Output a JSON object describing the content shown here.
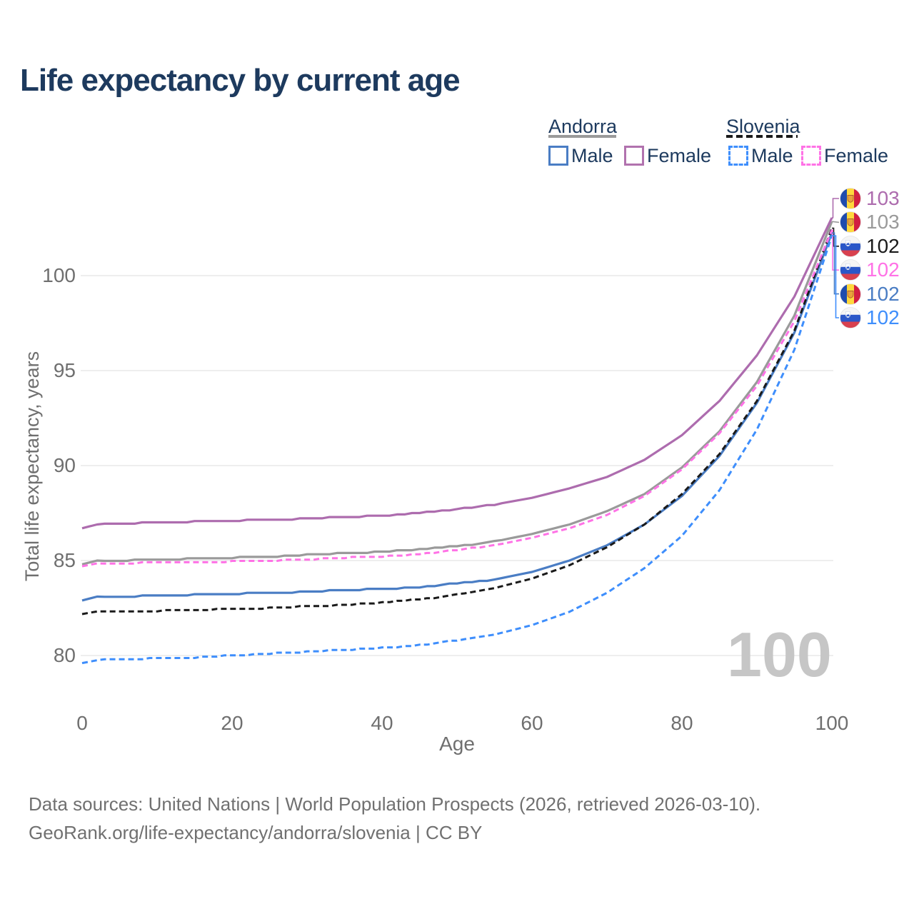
{
  "header": {
    "title": "Life expectancy by current age"
  },
  "legend": {
    "groups": [
      {
        "country": "Andorra",
        "underline_style": "solid",
        "underline_color": "#9a9a9a",
        "items": [
          {
            "label": "Male",
            "color": "#4a7dc4",
            "line_style": "solid"
          },
          {
            "label": "Female",
            "color": "#b172ae",
            "line_style": "solid"
          }
        ]
      },
      {
        "country": "Slovenia",
        "underline_style": "dashed",
        "underline_color": "#1a1a1a",
        "items": [
          {
            "label": "Male",
            "color": "#3e8efc",
            "line_style": "dashed"
          },
          {
            "label": "Female",
            "color": "#ff72e6",
            "line_style": "dashed"
          }
        ]
      }
    ]
  },
  "chart_data": {
    "type": "line",
    "title": "Life expectancy by current age",
    "xlabel": "Age",
    "ylabel": "Total life expectancy, years",
    "xticks": [
      0,
      20,
      40,
      60,
      80,
      100
    ],
    "yticks": [
      80,
      85,
      90,
      95,
      100
    ],
    "xlim": [
      0,
      100
    ],
    "ylim": [
      78.5,
      104
    ],
    "grid": "horizontal-only",
    "legend_position": "top-right",
    "x": [
      0,
      2,
      5,
      10,
      15,
      20,
      25,
      30,
      35,
      40,
      45,
      50,
      55,
      60,
      65,
      70,
      75,
      80,
      85,
      90,
      95,
      100
    ],
    "series": [
      {
        "name": "Andorra Female",
        "country": "Andorra",
        "sex": "Female",
        "style": "solid",
        "color": "#ad6cae",
        "flag": "andorra-flag-icon",
        "end_label": "103",
        "values": [
          86.7,
          86.9,
          86.95,
          87.0,
          87.05,
          87.1,
          87.15,
          87.2,
          87.3,
          87.35,
          87.5,
          87.7,
          87.95,
          88.3,
          88.8,
          89.4,
          90.3,
          91.6,
          93.4,
          95.8,
          98.9,
          103.05
        ]
      },
      {
        "name": "Andorra",
        "country": "Andorra",
        "sex": "Both sexes",
        "style": "solid",
        "color": "#9a9a9a",
        "flag": "andorra-flag-icon",
        "end_label": "103",
        "values": [
          84.8,
          85.0,
          85.0,
          85.05,
          85.1,
          85.15,
          85.2,
          85.3,
          85.4,
          85.45,
          85.6,
          85.75,
          86.0,
          86.4,
          86.9,
          87.6,
          88.5,
          89.9,
          91.8,
          94.4,
          97.9,
          102.85
        ]
      },
      {
        "name": "Slovenia",
        "country": "Slovenia",
        "sex": "Both sexes",
        "style": "dashed",
        "color": "#1a1a1a",
        "flag": "slovenia-flag-icon",
        "end_label": "102",
        "values": [
          82.2,
          82.3,
          82.3,
          82.35,
          82.4,
          82.45,
          82.5,
          82.6,
          82.65,
          82.8,
          82.95,
          83.2,
          83.55,
          84.05,
          84.75,
          85.7,
          86.9,
          88.5,
          90.6,
          93.4,
          97.1,
          102.5
        ]
      },
      {
        "name": "Slovenia Female",
        "country": "Slovenia",
        "sex": "Female",
        "style": "dashed",
        "color": "#ff72e6",
        "flag": "slovenia-flag-icon",
        "end_label": "102",
        "values": [
          84.7,
          84.85,
          84.85,
          84.9,
          84.9,
          84.95,
          85.0,
          85.05,
          85.15,
          85.2,
          85.35,
          85.55,
          85.8,
          86.2,
          86.7,
          87.4,
          88.4,
          89.8,
          91.7,
          94.2,
          97.6,
          102.4
        ]
      },
      {
        "name": "Andorra Male",
        "country": "Andorra",
        "sex": "Male",
        "style": "solid",
        "color": "#4a7dc4",
        "flag": "andorra-flag-icon",
        "end_label": "102",
        "values": [
          82.9,
          83.1,
          83.1,
          83.15,
          83.2,
          83.25,
          83.3,
          83.35,
          83.45,
          83.5,
          83.6,
          83.8,
          84.0,
          84.4,
          85.0,
          85.8,
          86.9,
          88.4,
          90.5,
          93.3,
          97.0,
          102.25
        ]
      },
      {
        "name": "Slovenia Male",
        "country": "Slovenia",
        "sex": "Male",
        "style": "dashed",
        "color": "#3e8efc",
        "flag": "slovenia-flag-icon",
        "end_label": "102",
        "values": [
          79.6,
          79.75,
          79.8,
          79.85,
          79.9,
          80.0,
          80.1,
          80.2,
          80.3,
          80.4,
          80.55,
          80.8,
          81.1,
          81.6,
          82.3,
          83.3,
          84.6,
          86.3,
          88.7,
          91.9,
          96.1,
          102.1
        ]
      }
    ]
  },
  "watermark": "100",
  "footer": {
    "line1": "Data sources: United Nations | World Population Prospects (2026, retrieved 2026-03-10).",
    "line2": "GeoRank.org/life-expectancy/andorra/slovenia | CC BY"
  }
}
